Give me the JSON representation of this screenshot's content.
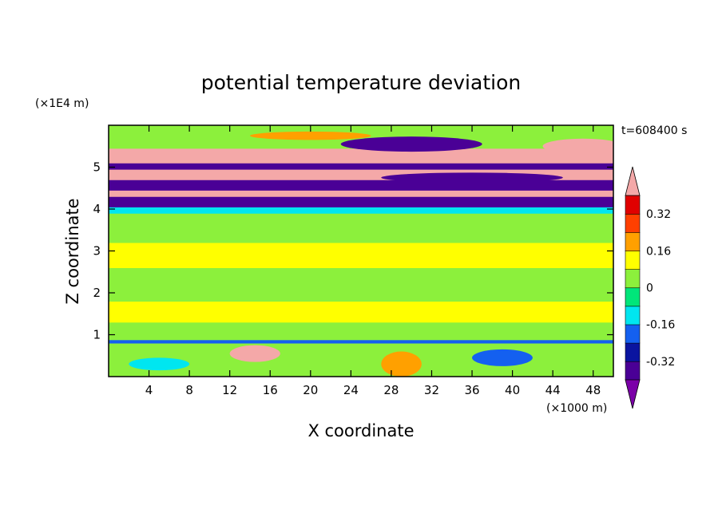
{
  "chart_data": {
    "type": "heatmap",
    "title": "potential temperature deviation",
    "xlabel": "X coordinate",
    "ylabel": "Z coordinate",
    "x_unit": "(×1000 m)",
    "y_unit": "(×1E4 m)",
    "time_label": "t=608400 s",
    "xlim": [
      0,
      50
    ],
    "ylim": [
      0,
      6
    ],
    "x_ticks": [
      4,
      8,
      12,
      16,
      20,
      24,
      28,
      32,
      36,
      40,
      44,
      48
    ],
    "y_ticks": [
      1,
      2,
      3,
      4,
      5
    ],
    "colorbar": {
      "levels": [
        -0.4,
        -0.32,
        -0.24,
        -0.16,
        -0.08,
        0,
        0.08,
        0.16,
        0.24,
        0.32,
        0.4
      ],
      "colors": [
        "#7b00a8",
        "#4a0096",
        "#0a14a0",
        "#1460f0",
        "#00e6f0",
        "#00e67a",
        "#8cf03c",
        "#ffff00",
        "#ffa000",
        "#ff4000",
        "#e00000",
        "#f4a8a8"
      ],
      "tick_labels": [
        "0.32",
        "0.16",
        "0",
        "-0.16",
        "-0.32"
      ],
      "tick_values": [
        0.32,
        0.16,
        0,
        -0.16,
        -0.32
      ]
    },
    "bands": [
      {
        "z0": 0.0,
        "z1": 0.8,
        "value": 0.04
      },
      {
        "z0": 0.8,
        "z1": 0.88,
        "value": -0.2
      },
      {
        "z0": 0.88,
        "z1": 1.3,
        "value": 0.06
      },
      {
        "z0": 1.3,
        "z1": 1.8,
        "value": 0.1
      },
      {
        "z0": 1.8,
        "z1": 2.6,
        "value": 0.06
      },
      {
        "z0": 2.6,
        "z1": 3.2,
        "value": 0.1
      },
      {
        "z0": 3.2,
        "z1": 3.9,
        "value": 0.04
      },
      {
        "z0": 3.9,
        "z1": 4.05,
        "value": -0.1
      },
      {
        "z0": 4.05,
        "z1": 4.3,
        "value": -0.36
      },
      {
        "z0": 4.3,
        "z1": 4.45,
        "value": 0.45
      },
      {
        "z0": 4.45,
        "z1": 4.7,
        "value": -0.36
      },
      {
        "z0": 4.7,
        "z1": 4.95,
        "value": 0.45
      },
      {
        "z0": 4.95,
        "z1": 5.1,
        "value": -0.36
      },
      {
        "z0": 5.1,
        "z1": 5.25,
        "value": 0.45
      },
      {
        "z0": 5.25,
        "z1": 5.45,
        "value": 0.45
      },
      {
        "z0": 5.45,
        "z1": 5.75,
        "value": 0.06
      },
      {
        "z0": 5.75,
        "z1": 6.0,
        "value": 0.04
      }
    ],
    "features": [
      {
        "x": 14.5,
        "z": 0.55,
        "rx": 2.5,
        "rz": 0.2,
        "value": 0.45
      },
      {
        "x": 30,
        "z": 5.55,
        "rx": 7,
        "rz": 0.18,
        "value": -0.36
      },
      {
        "x": 47,
        "z": 5.5,
        "rx": 4,
        "rz": 0.18,
        "value": 0.45
      },
      {
        "x": 36,
        "z": 4.75,
        "rx": 9,
        "rz": 0.12,
        "value": -0.36
      },
      {
        "x": 29,
        "z": 0.3,
        "rx": 2,
        "rz": 0.3,
        "value": 0.2
      },
      {
        "x": 39,
        "z": 0.45,
        "rx": 3,
        "rz": 0.2,
        "value": -0.2
      },
      {
        "x": 5,
        "z": 0.3,
        "rx": 3,
        "rz": 0.15,
        "value": -0.14
      },
      {
        "x": 20,
        "z": 5.75,
        "rx": 6,
        "rz": 0.1,
        "value": 0.2
      }
    ]
  }
}
